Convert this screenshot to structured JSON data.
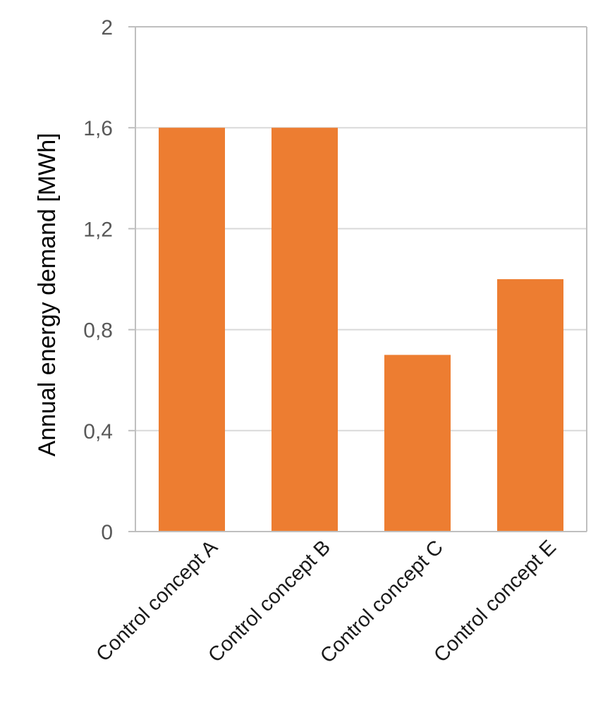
{
  "chart_data": {
    "type": "bar",
    "categories": [
      "Control concept A",
      "Control concept B",
      "Control concept C",
      "Control concept E"
    ],
    "values": [
      1.6,
      1.6,
      0.7,
      1.0
    ],
    "ylabel": "Annual energy demand [MWh]",
    "xlabel": "",
    "ylim": [
      0,
      2
    ],
    "yticks": [
      0,
      0.4,
      0.8,
      1.2,
      1.6,
      2
    ],
    "ytick_labels": [
      "0",
      "0,4",
      "0,8",
      "1,2",
      "1,6",
      "2"
    ],
    "grid": true,
    "colors": {
      "bar": "#ED7D31",
      "grid": "#D9D9D9",
      "axis": "#BFBFBF"
    }
  }
}
